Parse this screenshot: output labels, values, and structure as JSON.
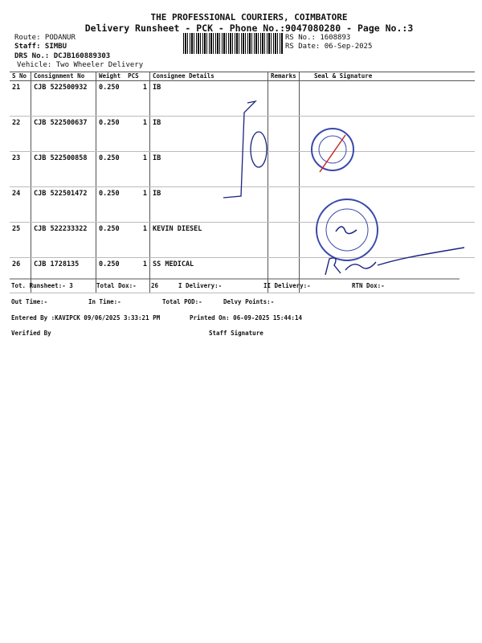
{
  "header": {
    "company": "THE PROFESSIONAL COURIERS, COIMBATORE",
    "subtitle": "Delivery Runsheet - PCK - Phone No.:9047080280 - Page No.:3",
    "route": "Route: PODANUR",
    "staff": "Staff: SIMBU",
    "drs_no": "DRS No.: DCJB160889303",
    "vehicle": "Vehicle: Two Wheeler Delivery",
    "rs_no": "RS No.: 1608893",
    "rs_date": "RS Date: 06-Sep-2025"
  },
  "table": {
    "columns": [
      "S No",
      "Consignment No",
      "Weight",
      "PCS",
      "Consignee Details",
      "Remarks",
      "Seal & Signature"
    ],
    "rows": [
      {
        "sno": "21",
        "cn": "CJB 522500932",
        "weight": "0.250",
        "pcs": "1",
        "consignee": "IB"
      },
      {
        "sno": "22",
        "cn": "CJB 522500637",
        "weight": "0.250",
        "pcs": "1",
        "consignee": "IB"
      },
      {
        "sno": "23",
        "cn": "CJB 522500858",
        "weight": "0.250",
        "pcs": "1",
        "consignee": "IB"
      },
      {
        "sno": "24",
        "cn": "CJB 522501472",
        "weight": "0.250",
        "pcs": "1",
        "consignee": "IB"
      },
      {
        "sno": "25",
        "cn": "CJB 522233322",
        "weight": "0.250",
        "pcs": "1",
        "consignee": "KEVIN DIESEL"
      },
      {
        "sno": "26",
        "cn": "CJB 1728135",
        "weight": "0.250",
        "pcs": "1",
        "consignee": "SS MEDICAL"
      }
    ]
  },
  "footer": {
    "tot_runsheet": "Tot. Runsheet:- 3",
    "total_dox": "Total Dox:-",
    "total_dox_val": "26",
    "i_delivery": "I Delivery:-",
    "ii_delivery": "II Delivery:-",
    "rtn_dox": "RTN Dox:-",
    "out_time": "Out Time:-",
    "in_time": "In Time:-",
    "total_pod": "Total POD:-",
    "delvy_points": "Delvy Points:-",
    "entered_by": "Entered By :KAVIPCK 09/06/2025 3:33:21 PM",
    "printed_on": "Printed On: 06-09-2025 15:44:14",
    "verified_by": "Verified By",
    "staff_signature": "Staff Signature"
  },
  "handwriting": {
    "signature": "R. Ragavi 8840096686"
  },
  "colors": {
    "ink": "#1a237e",
    "stamp": "#3949ab",
    "red": "#c62828"
  }
}
